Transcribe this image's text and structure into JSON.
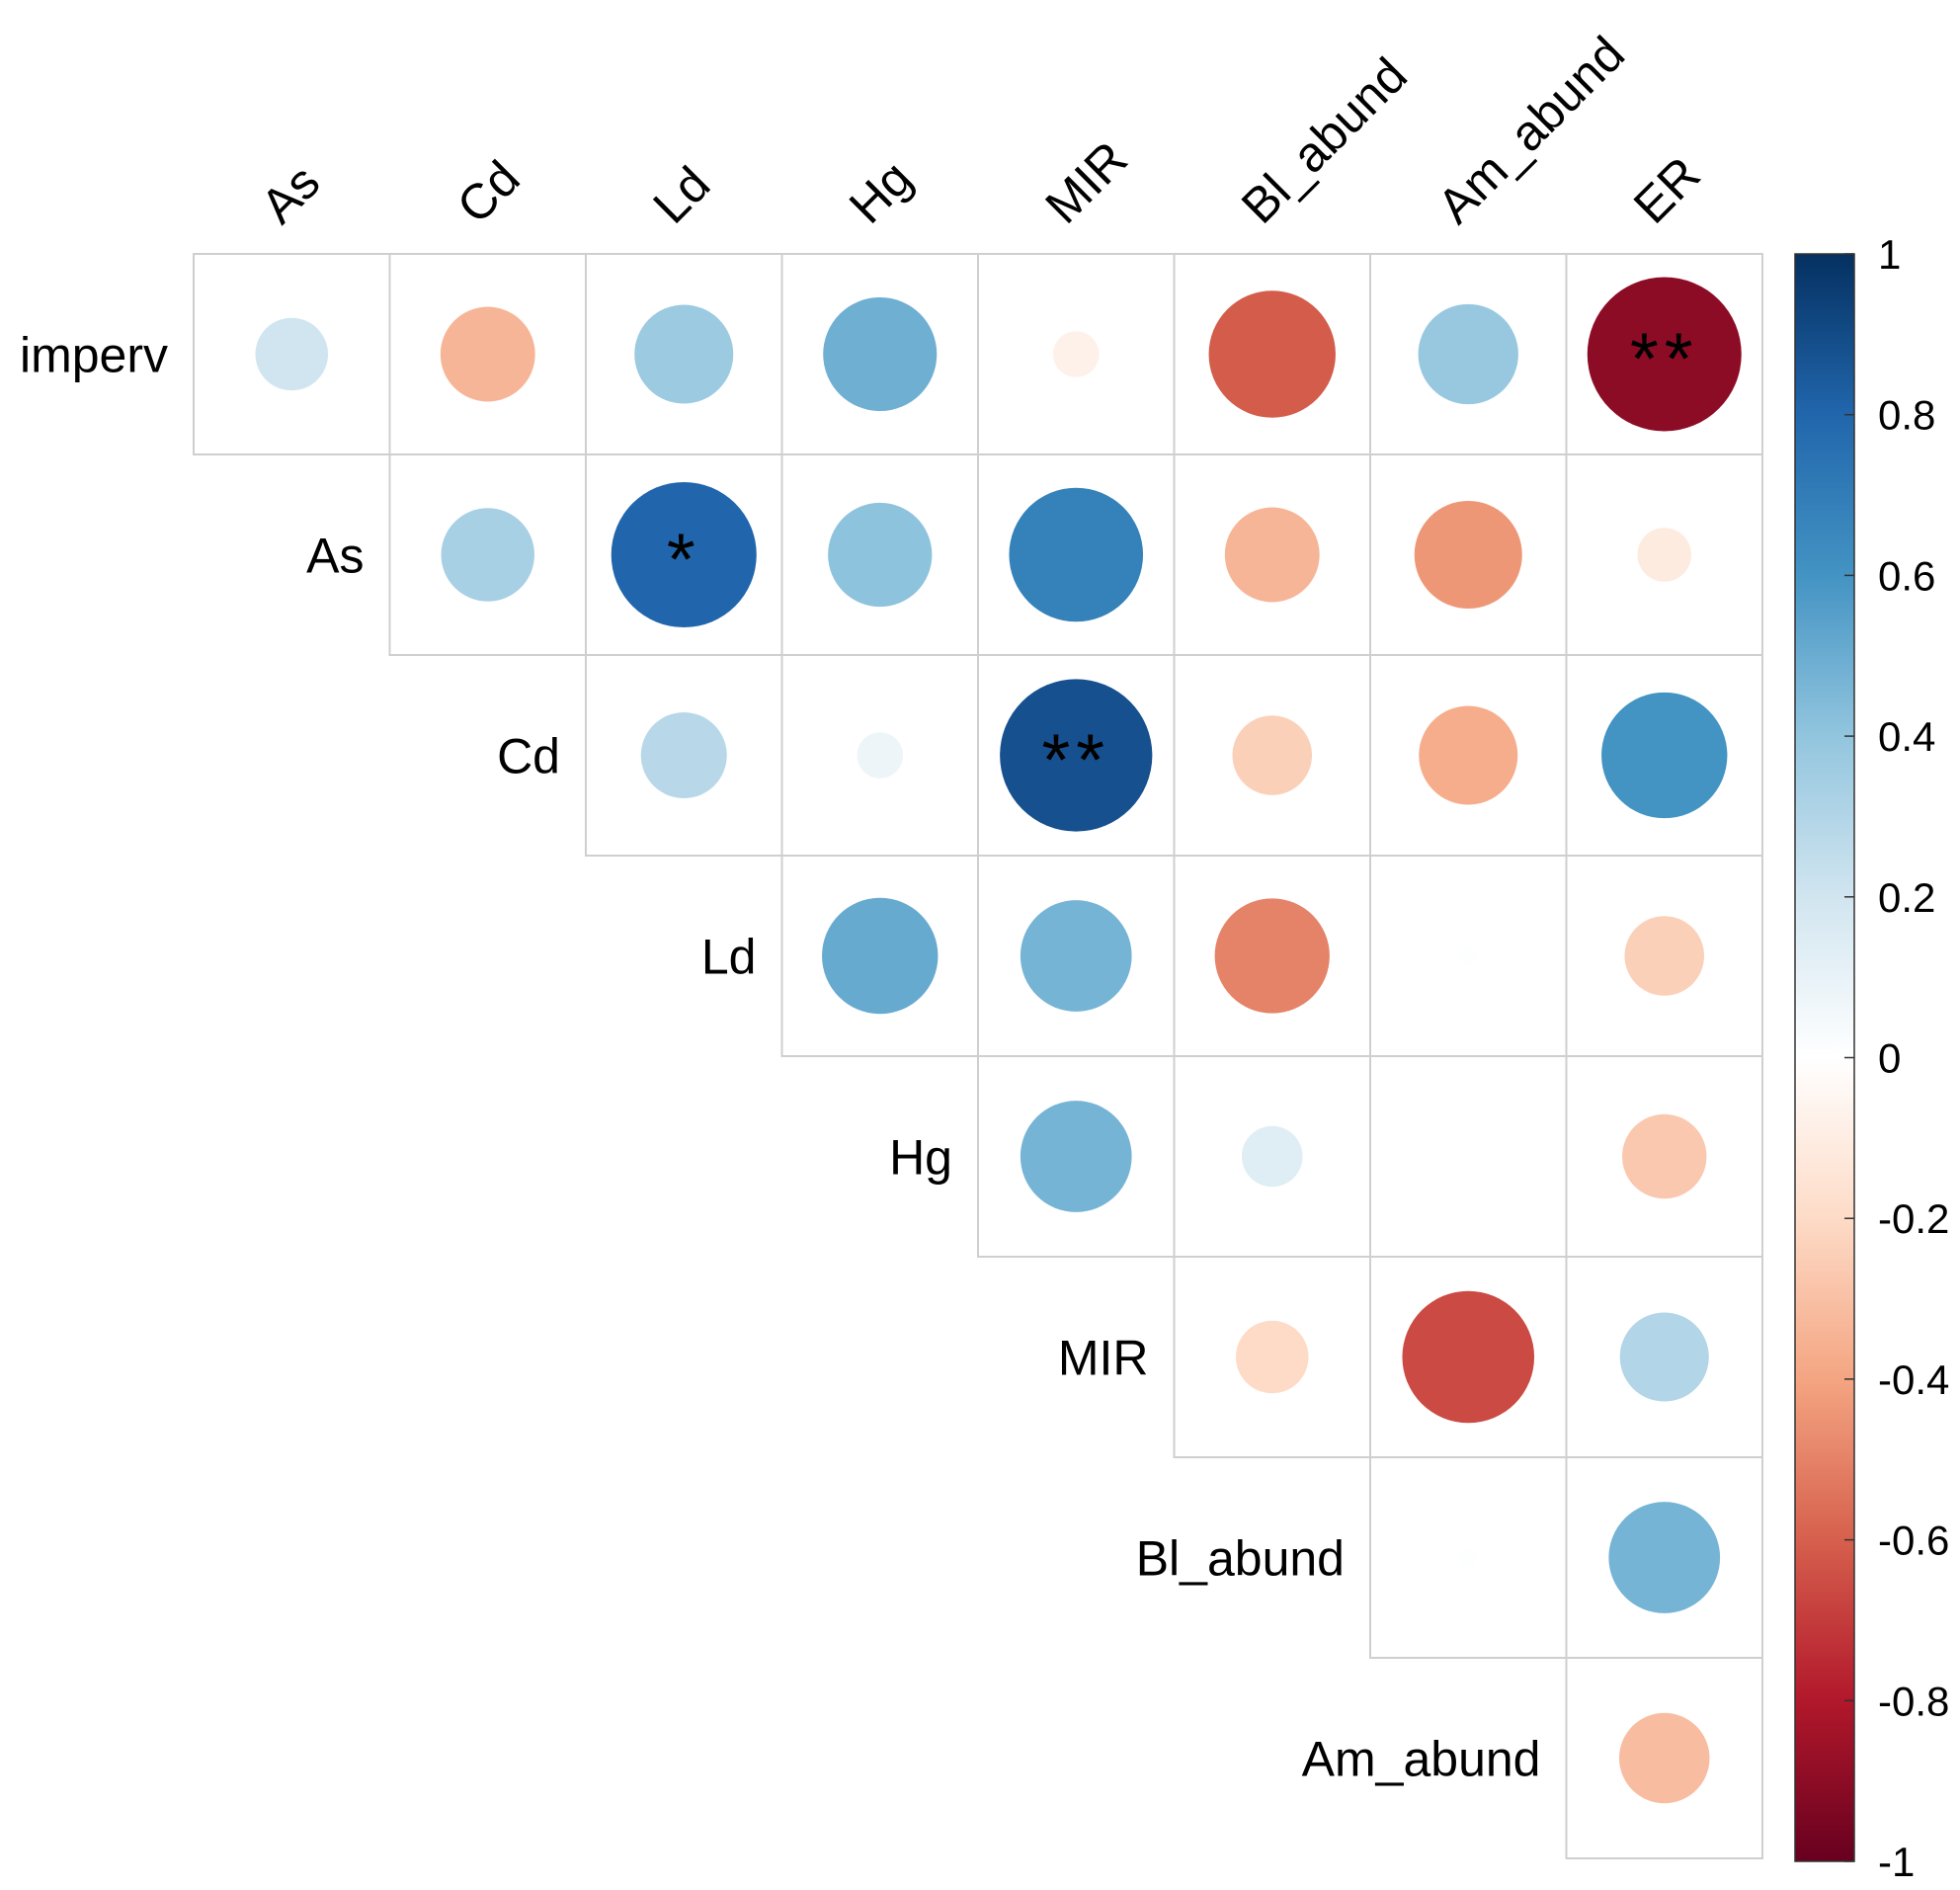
{
  "chart_data": {
    "type": "heatmap",
    "style": "correlation circles, upper triangle, circle size and color encode correlation coefficient",
    "title": "",
    "row_labels": [
      "imperv",
      "As",
      "Cd",
      "Ld",
      "Hg",
      "MIR",
      "Bl_abund",
      "Am_abund"
    ],
    "col_labels": [
      "As",
      "Cd",
      "Ld",
      "Hg",
      "MIR",
      "Bl_abund",
      "Am_abund",
      "ER"
    ],
    "cells": [
      {
        "row": "imperv",
        "col": "As",
        "r": 0.2,
        "sig": ""
      },
      {
        "row": "imperv",
        "col": "Cd",
        "r": -0.34,
        "sig": ""
      },
      {
        "row": "imperv",
        "col": "Ld",
        "r": 0.37,
        "sig": ""
      },
      {
        "row": "imperv",
        "col": "Hg",
        "r": 0.49,
        "sig": ""
      },
      {
        "row": "imperv",
        "col": "MIR",
        "r": -0.08,
        "sig": ""
      },
      {
        "row": "imperv",
        "col": "Bl_abund",
        "r": -0.61,
        "sig": ""
      },
      {
        "row": "imperv",
        "col": "Am_abund",
        "r": 0.38,
        "sig": ""
      },
      {
        "row": "imperv",
        "col": "ER",
        "r": -0.9,
        "sig": "**"
      },
      {
        "row": "As",
        "col": "Cd",
        "r": 0.33,
        "sig": ""
      },
      {
        "row": "As",
        "col": "Ld",
        "r": 0.8,
        "sig": "*"
      },
      {
        "row": "As",
        "col": "Hg",
        "r": 0.41,
        "sig": ""
      },
      {
        "row": "As",
        "col": "MIR",
        "r": 0.68,
        "sig": ""
      },
      {
        "row": "As",
        "col": "Bl_abund",
        "r": -0.34,
        "sig": ""
      },
      {
        "row": "As",
        "col": "Am_abund",
        "r": -0.44,
        "sig": ""
      },
      {
        "row": "As",
        "col": "ER",
        "r": -0.11,
        "sig": ""
      },
      {
        "row": "Cd",
        "col": "Ld",
        "r": 0.28,
        "sig": ""
      },
      {
        "row": "Cd",
        "col": "Hg",
        "r": 0.08,
        "sig": ""
      },
      {
        "row": "Cd",
        "col": "MIR",
        "r": 0.88,
        "sig": "**"
      },
      {
        "row": "Cd",
        "col": "Bl_abund",
        "r": -0.24,
        "sig": ""
      },
      {
        "row": "Cd",
        "col": "Am_abund",
        "r": -0.37,
        "sig": ""
      },
      {
        "row": "Cd",
        "col": "ER",
        "r": 0.6,
        "sig": ""
      },
      {
        "row": "Ld",
        "col": "Hg",
        "r": 0.51,
        "sig": ""
      },
      {
        "row": "Ld",
        "col": "MIR",
        "r": 0.47,
        "sig": ""
      },
      {
        "row": "Ld",
        "col": "Bl_abund",
        "r": -0.5,
        "sig": ""
      },
      {
        "row": "Ld",
        "col": "Am_abund",
        "r": 0.01,
        "sig": ""
      },
      {
        "row": "Ld",
        "col": "ER",
        "r": -0.24,
        "sig": ""
      },
      {
        "row": "Hg",
        "col": "MIR",
        "r": 0.47,
        "sig": ""
      },
      {
        "row": "Hg",
        "col": "Bl_abund",
        "r": 0.14,
        "sig": ""
      },
      {
        "row": "Hg",
        "col": "Am_abund",
        "r": 0.0,
        "sig": ""
      },
      {
        "row": "Hg",
        "col": "ER",
        "r": -0.27,
        "sig": ""
      },
      {
        "row": "MIR",
        "col": "Bl_abund",
        "r": -0.2,
        "sig": ""
      },
      {
        "row": "MIR",
        "col": "Am_abund",
        "r": -0.66,
        "sig": ""
      },
      {
        "row": "MIR",
        "col": "ER",
        "r": 0.3,
        "sig": ""
      },
      {
        "row": "Bl_abund",
        "col": "Am_abund",
        "r": 0.01,
        "sig": ""
      },
      {
        "row": "Bl_abund",
        "col": "ER",
        "r": 0.47,
        "sig": ""
      },
      {
        "row": "Am_abund",
        "col": "ER",
        "r": -0.31,
        "sig": ""
      }
    ],
    "colorbar": {
      "min": -1,
      "max": 1,
      "ticks": [
        "1",
        "0.8",
        "0.6",
        "0.4",
        "0.2",
        "0",
        "-0.2",
        "-0.4",
        "-0.6",
        "-0.8",
        "-1"
      ],
      "tick_values": [
        1,
        0.8,
        0.6,
        0.4,
        0.2,
        0,
        -0.2,
        -0.4,
        -0.6,
        -0.8,
        -1
      ],
      "palette": [
        "#67001F",
        "#B2182B",
        "#D6604D",
        "#F4A582",
        "#FDDBC7",
        "#FFFFFF",
        "#D1E5F0",
        "#92C5DE",
        "#4393C3",
        "#2166AC",
        "#053061"
      ]
    }
  }
}
